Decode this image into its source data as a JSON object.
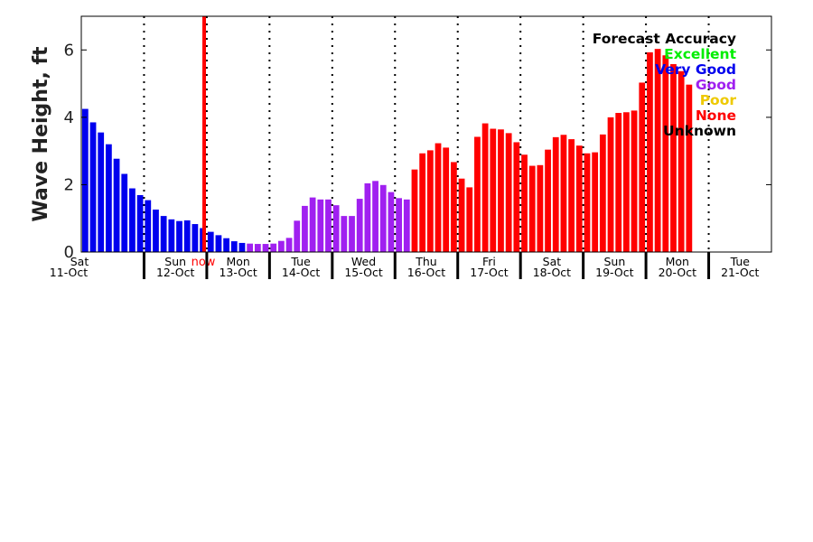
{
  "chart_data": {
    "type": "bar",
    "ylabel": "Wave Height, ft",
    "ylim": [
      0,
      7
    ],
    "yticks": [
      0,
      2,
      4,
      6
    ],
    "grid": false,
    "legend_placement": "top-right",
    "legend_title": "Forecast Accuracy",
    "days": [
      {
        "name": "Sat",
        "date": "11-Oct"
      },
      {
        "name": "Sun",
        "date": "12-Oct"
      },
      {
        "name": "Mon",
        "date": "13-Oct"
      },
      {
        "name": "Tue",
        "date": "14-Oct"
      },
      {
        "name": "Wed",
        "date": "15-Oct"
      },
      {
        "name": "Thu",
        "date": "16-Oct"
      },
      {
        "name": "Fri",
        "date": "17-Oct"
      },
      {
        "name": "Sat",
        "date": "18-Oct"
      },
      {
        "name": "Sun",
        "date": "19-Oct"
      },
      {
        "name": "Mon",
        "date": "20-Oct"
      },
      {
        "name": "Tue",
        "date": "21-Oct"
      }
    ],
    "x_start": "2025-10-11 00:00",
    "bar_interval_hours": 3,
    "now": {
      "label": "now",
      "time": "2025-10-12 23:00",
      "color": "#ff0000"
    },
    "legend": [
      {
        "label": "Excellent",
        "color": "#00ee00"
      },
      {
        "label": "Very Good",
        "color": "#0000ee"
      },
      {
        "label": "Good",
        "color": "#a020f0"
      },
      {
        "label": "Poor",
        "color": "#eec900"
      },
      {
        "label": "None",
        "color": "#ff0000"
      },
      {
        "label": "Unknown",
        "color": "#000000"
      }
    ],
    "accuracy_groups": [
      {
        "accuracy": "Very Good",
        "color": "#0000ee",
        "values": [
          4.25,
          3.85,
          3.55,
          3.2,
          2.77,
          2.32,
          1.89,
          1.69,
          1.54,
          1.26,
          1.07,
          0.97,
          0.92,
          0.94,
          0.83,
          0.71,
          0.6,
          0.5,
          0.41,
          0.32,
          0.27
        ]
      },
      {
        "accuracy": "Good",
        "color": "#a020f0",
        "values": [
          0.25,
          0.24,
          0.24,
          0.25,
          0.33,
          0.42,
          0.93,
          1.37,
          1.62,
          1.56,
          1.56,
          1.39,
          1.07,
          1.07,
          1.58,
          2.04,
          2.11,
          1.99,
          1.78,
          1.6,
          1.56
        ]
      },
      {
        "accuracy": "None",
        "color": "#ff0000",
        "values": [
          2.45,
          2.93,
          3.02,
          3.23,
          3.1,
          2.67,
          2.18,
          1.92,
          3.42,
          3.82,
          3.66,
          3.64,
          3.53,
          3.26,
          2.89,
          2.56,
          2.58,
          3.04,
          3.41,
          3.48,
          3.35,
          3.16,
          2.93,
          2.96,
          3.49,
          4.0,
          4.13,
          4.15,
          4.2,
          5.03,
          5.93,
          6.03,
          5.84,
          5.58,
          5.37,
          4.97
        ]
      }
    ]
  }
}
